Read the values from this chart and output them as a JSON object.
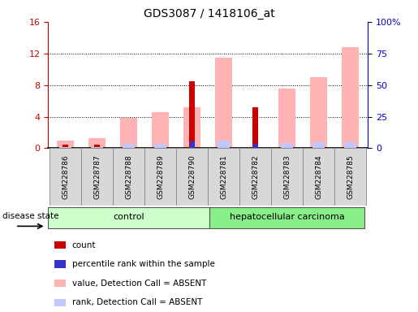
{
  "title": "GDS3087 / 1418106_at",
  "samples": [
    "GSM228786",
    "GSM228787",
    "GSM228788",
    "GSM228789",
    "GSM228790",
    "GSM228781",
    "GSM228782",
    "GSM228783",
    "GSM228784",
    "GSM228785"
  ],
  "count": [
    0.5,
    0.5,
    0,
    0,
    8.5,
    0,
    5.2,
    0,
    0,
    0
  ],
  "percentile_rank": [
    0,
    0.5,
    0,
    0,
    5.2,
    0,
    3.5,
    0,
    0,
    0
  ],
  "value_absent": [
    1.0,
    1.3,
    3.8,
    4.6,
    5.2,
    11.5,
    0,
    7.5,
    9.0,
    12.8
  ],
  "rank_absent": [
    0.9,
    0.9,
    3.5,
    3.5,
    0,
    6.2,
    0,
    4.2,
    4.5,
    4.5
  ],
  "ylim_left": [
    0,
    16
  ],
  "ylim_right": [
    0,
    100
  ],
  "yticks_left": [
    0,
    4,
    8,
    12,
    16
  ],
  "ytick_labels_right": [
    "0",
    "25",
    "50",
    "75",
    "100%"
  ],
  "color_count": "#cc0000",
  "color_percentile": "#3333cc",
  "color_value_absent": "#ffb3b3",
  "color_rank_absent": "#c0c8ff",
  "left_axis_color": "#cc0000",
  "right_axis_color": "#0000cc",
  "figsize": [
    5.15,
    3.84
  ],
  "dpi": 100
}
